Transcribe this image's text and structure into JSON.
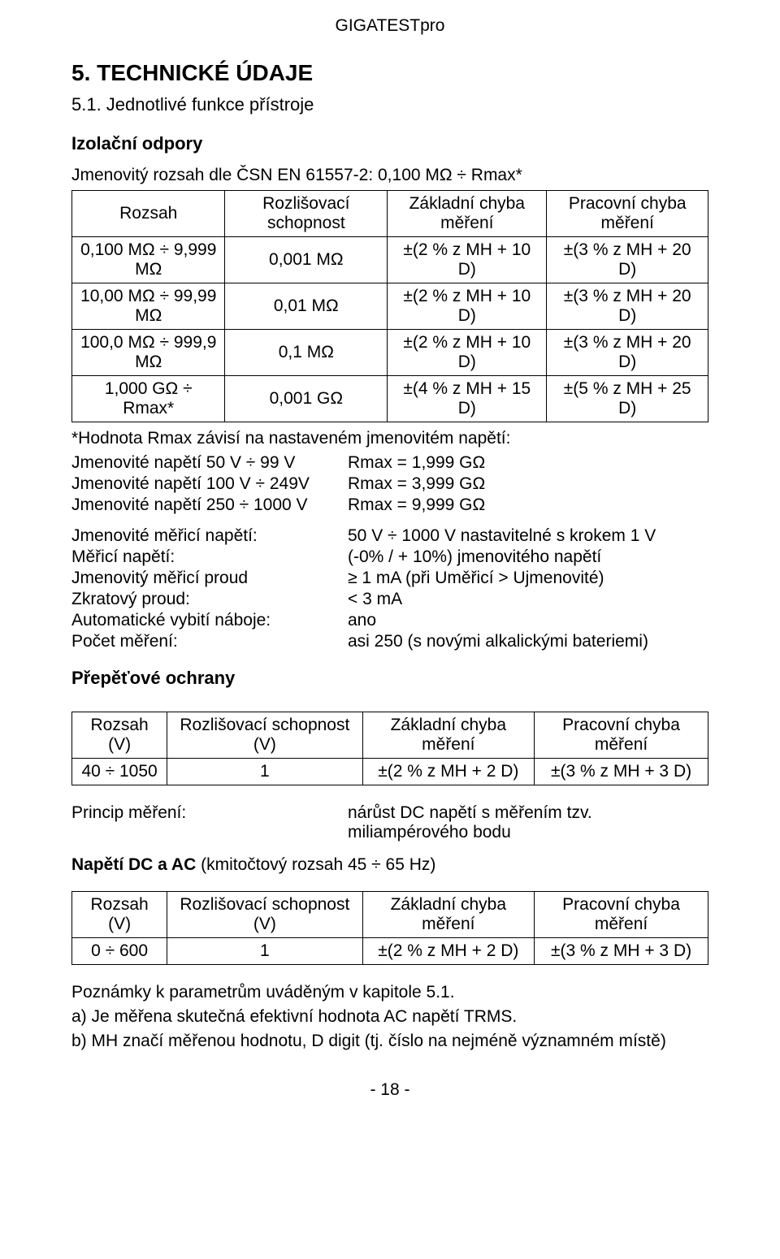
{
  "doc": {
    "product": "GIGATESTpro",
    "h1": "5.  TECHNICKÉ ÚDAJE",
    "h2": "5.1. Jednotlivé funkce přístroje",
    "page_number": "- 18 -"
  },
  "iso": {
    "title": "Izolační odpory",
    "nominal_range_line": "Jmenovitý rozsah dle ČSN EN 61557-2: 0,100 MΩ ÷ Rmax*",
    "columns": [
      "Rozsah",
      "Rozlišovací schopnost",
      "Základní chyba měření",
      "Pracovní chyba měření"
    ],
    "rows": [
      [
        "0,100 MΩ ÷ 9,999 MΩ",
        "0,001 MΩ",
        "±(2 % z MH + 10 D)",
        "±(3 % z MH + 20 D)"
      ],
      [
        "10,00 MΩ ÷ 99,99 MΩ",
        "0,01 MΩ",
        "±(2 % z MH + 10 D)",
        "±(3 % z MH + 20 D)"
      ],
      [
        "100,0 MΩ ÷ 999,9 MΩ",
        "0,1 MΩ",
        "±(2 % z MH + 10 D)",
        "±(3 % z MH + 20 D)"
      ],
      [
        "1,000 GΩ ÷ Rmax*",
        "0,001 GΩ",
        "±(4 % z MH + 15 D)",
        "±(5 % z MH + 25 D)"
      ]
    ],
    "note_lines": [
      "*Hodnota Rmax závisí na nastaveném jmenovitém napětí:"
    ],
    "rmax_pairs": [
      [
        "Jmenovité napětí 50 V ÷ 99 V",
        "Rmax = 1,999 GΩ"
      ],
      [
        "Jmenovité napětí 100 V ÷ 249V",
        "Rmax = 3,999 GΩ"
      ],
      [
        "Jmenovité napětí 250 ÷ 1000 V",
        "Rmax = 9,999 GΩ"
      ]
    ],
    "params": [
      [
        "Jmenovité měřicí napětí:",
        "50 V ÷ 1000 V nastavitelné s krokem 1 V"
      ],
      [
        "Měřicí napětí:",
        "(-0% / + 10%) jmenovitého napětí"
      ],
      [
        "Jmenovitý měřicí proud",
        "≥ 1 mA (při Uměřicí > Ujmenovité)"
      ],
      [
        "Zkratový proud:",
        "< 3 mA"
      ],
      [
        "Automatické vybití náboje:",
        "ano"
      ],
      [
        "Počet měření:",
        "asi 250 (s novými alkalickými bateriemi)"
      ]
    ]
  },
  "surge": {
    "title": "Přepěťové ochrany",
    "columns": [
      "Rozsah (V)",
      "Rozlišovací schopnost (V)",
      "Základní chyba měření",
      "Pracovní chyba měření"
    ],
    "row": [
      "40 ÷ 1050",
      "1",
      "±(2 % z MH + 2 D)",
      "±(3 % z MH + 3 D)"
    ],
    "principle_label": "Princip měření:",
    "principle_value_l1": "nárůst DC napětí s měřením tzv.",
    "principle_value_l2": "miliampérového bodu"
  },
  "voltage": {
    "title_prefix": "Napětí DC a AC",
    "title_suffix": " (kmitočtový rozsah 45 ÷ 65 Hz)",
    "columns": [
      "Rozsah (V)",
      "Rozlišovací schopnost (V)",
      "Základní chyba měření",
      "Pracovní chyba měření"
    ],
    "row": [
      "0 ÷ 600",
      "1",
      "±(2 % z MH + 2 D)",
      "±(3 % z MH + 3 D)"
    ]
  },
  "notes": {
    "header": "Poznámky k parametrům uváděným v kapitole 5.1.",
    "a": "a) Je měřena skutečná efektivní hodnota AC napětí TRMS.",
    "b": "b) MH značí měřenou hodnotu, D digit (tj. číslo na nejméně významném místě)"
  }
}
